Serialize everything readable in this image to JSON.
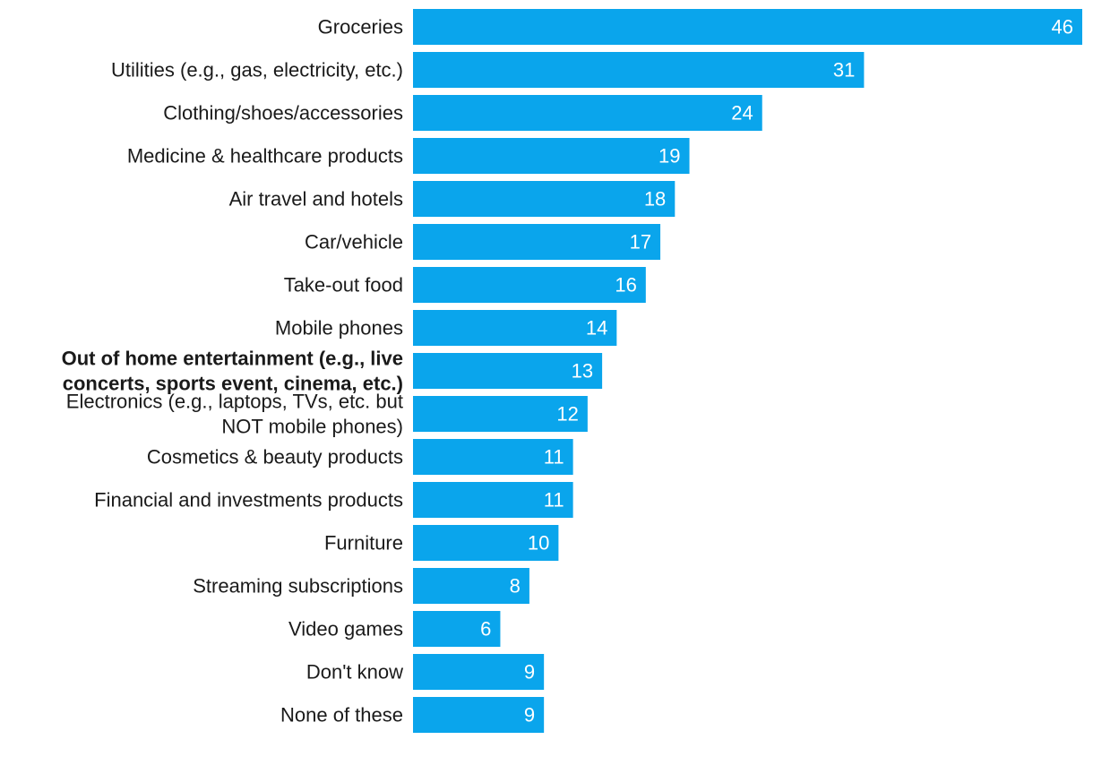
{
  "chart_data": {
    "type": "bar",
    "orientation": "horizontal",
    "title": "",
    "xlabel": "",
    "ylabel": "",
    "grid": false,
    "bar_color": "#0aa5ec",
    "label_color": "#1a1a1a",
    "value_label_color": "#ffffff",
    "xlim": [
      0,
      46
    ],
    "categories": [
      "Groceries",
      "Utilities (e.g., gas, electricity, etc.)",
      "Clothing/shoes/accessories",
      "Medicine & healthcare products",
      "Air travel and hotels",
      "Car/vehicle",
      "Take-out food",
      "Mobile phones",
      "Out of home entertainment (e.g., live concerts, sports event, cinema, etc.)",
      "Electronics (e.g., laptops, TVs, etc. but NOT mobile phones)",
      "Cosmetics & beauty products",
      "Financial and investments products",
      "Furniture",
      "Streaming subscriptions",
      "Video games",
      "Don't know",
      "None of these"
    ],
    "category_lines": [
      [
        "Groceries"
      ],
      [
        "Utilities (e.g., gas, electricity, etc.)"
      ],
      [
        "Clothing/shoes/accessories"
      ],
      [
        "Medicine & healthcare products"
      ],
      [
        "Air travel and hotels"
      ],
      [
        "Car/vehicle"
      ],
      [
        "Take-out food"
      ],
      [
        "Mobile phones"
      ],
      [
        "Out of home entertainment (e.g., live",
        "concerts, sports event, cinema, etc.)"
      ],
      [
        "Electronics (e.g., laptops, TVs, etc. but",
        "NOT mobile phones)"
      ],
      [
        "Cosmetics & beauty products"
      ],
      [
        "Financial and investments products"
      ],
      [
        "Furniture"
      ],
      [
        "Streaming subscriptions"
      ],
      [
        "Video games"
      ],
      [
        "Don't know"
      ],
      [
        "None of these"
      ]
    ],
    "highlighted_category": "Out of home entertainment (e.g., live concerts, sports event, cinema, etc.)",
    "values": [
      46,
      31,
      24,
      19,
      18,
      17,
      16,
      14,
      13,
      12,
      11,
      11,
      10,
      8,
      6,
      9,
      9
    ],
    "data_labels": [
      "46",
      "31",
      "24",
      "19",
      "18",
      "17",
      "16",
      "14",
      "13",
      "12",
      "11",
      "11",
      "10",
      "8",
      "6",
      "9",
      "9"
    ]
  }
}
